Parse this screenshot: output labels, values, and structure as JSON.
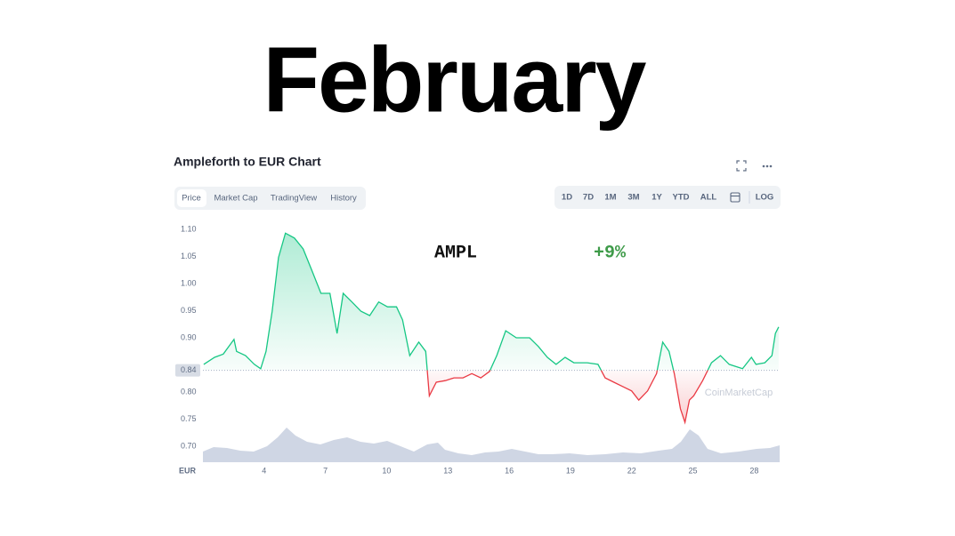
{
  "heading": "February",
  "ui": {
    "tabs": [
      "Price",
      "Market Cap",
      "TradingView",
      "History"
    ],
    "ranges": [
      "1D",
      "7D",
      "1M",
      "3M",
      "1Y",
      "YTD",
      "ALL"
    ],
    "log_button": "LOG",
    "watermark": "CoinMarketCap"
  },
  "chart_data": {
    "type": "line",
    "title": "Ampleforth to EUR Chart",
    "currency_label": "EUR",
    "change_annotation": "+9%",
    "reference_value": 0.84,
    "up_color": "#16c784",
    "down_color": "#ea3943",
    "xlim": [
      1,
      29.25
    ],
    "xticks": [
      4,
      7,
      10,
      13,
      16,
      19,
      22,
      25,
      28
    ],
    "ylim": [
      0.7,
      1.1
    ],
    "yticks": [
      {
        "value": 0.7,
        "label": "0.70"
      },
      0.75,
      {
        "value": 0.8,
        "label": "0.80"
      },
      {
        "value": 0.9,
        "label": "0.90"
      },
      0.95,
      {
        "value": 1.0,
        "label": "1.00"
      },
      1.05,
      {
        "value": 1.1,
        "label": "1.10"
      }
    ],
    "grid": false,
    "x": [
      1.04,
      1.57,
      2.0,
      2.52,
      2.65,
      3.09,
      3.52,
      3.83,
      4.09,
      4.39,
      4.7,
      5.04,
      5.48,
      5.91,
      6.35,
      6.78,
      7.22,
      7.57,
      7.87,
      8.3,
      8.74,
      9.17,
      9.61,
      10.04,
      10.48,
      10.78,
      11.13,
      11.57,
      11.91,
      12.09,
      12.43,
      12.87,
      13.3,
      13.74,
      14.17,
      14.61,
      15.04,
      15.39,
      15.83,
      16.35,
      17.0,
      17.43,
      17.87,
      18.3,
      18.74,
      19.17,
      19.83,
      20.35,
      20.7,
      21.13,
      21.57,
      22.0,
      22.35,
      22.78,
      23.22,
      23.52,
      23.83,
      24.09,
      24.39,
      24.61,
      24.83,
      25.04,
      25.48,
      25.91,
      26.35,
      26.78,
      27.43,
      27.87,
      28.09,
      28.52,
      28.87,
      29.04,
      29.2
    ],
    "series": [
      {
        "name": "AMPL",
        "color": "#16c784",
        "values": [
          0.851,
          0.864,
          0.87,
          0.897,
          0.875,
          0.867,
          0.851,
          0.843,
          0.875,
          0.949,
          1.048,
          1.093,
          1.084,
          1.064,
          1.023,
          0.982,
          0.982,
          0.908,
          0.982,
          0.966,
          0.949,
          0.941,
          0.966,
          0.957,
          0.957,
          0.933,
          0.867,
          0.892,
          0.875,
          0.793,
          0.818,
          0.821,
          0.826,
          0.826,
          0.834,
          0.826,
          0.838,
          0.867,
          0.913,
          0.9,
          0.9,
          0.884,
          0.864,
          0.851,
          0.864,
          0.854,
          0.854,
          0.851,
          0.826,
          0.818,
          0.81,
          0.802,
          0.785,
          0.802,
          0.834,
          0.892,
          0.875,
          0.834,
          0.769,
          0.744,
          0.785,
          0.793,
          0.821,
          0.854,
          0.867,
          0.851,
          0.843,
          0.864,
          0.851,
          0.854,
          0.867,
          0.908,
          0.92
        ]
      }
    ]
  }
}
